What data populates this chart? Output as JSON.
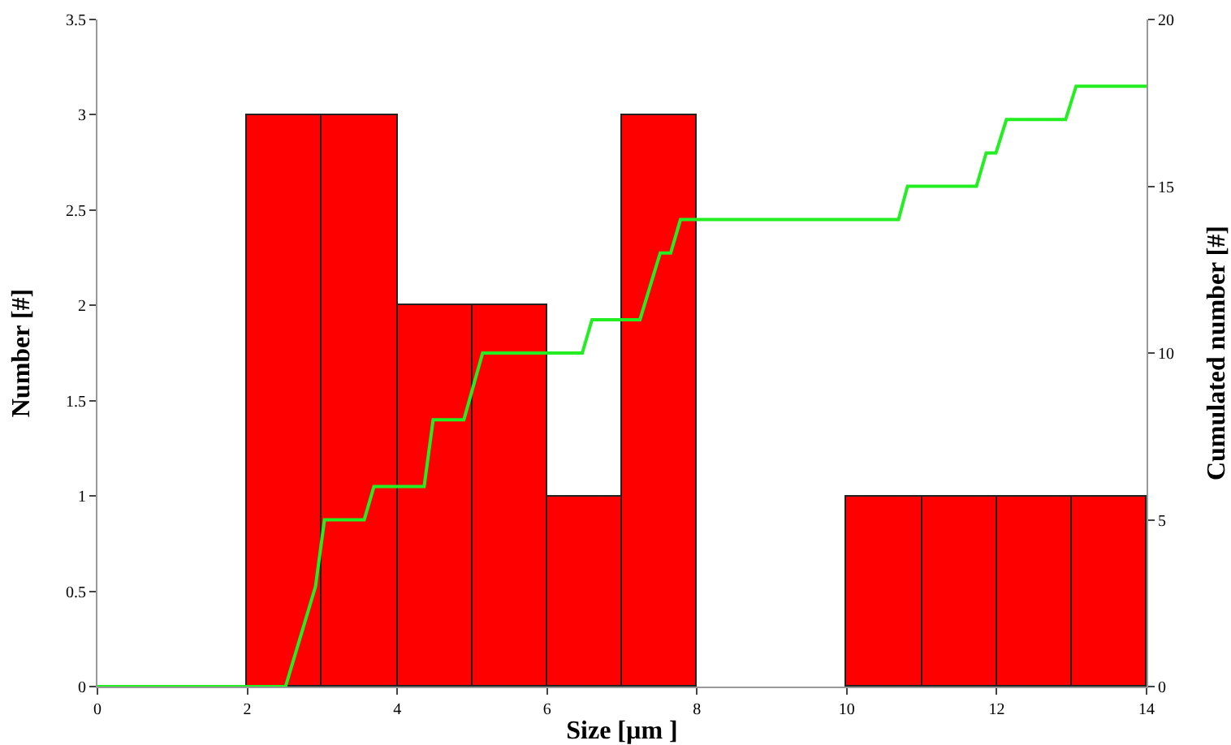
{
  "chart_data": {
    "type": "histogram",
    "xlabel": "Size [µm ]",
    "ylabel": "Number [#]",
    "y2label": "Cumulated number [#]",
    "bins": [
      2,
      3,
      4,
      5,
      6,
      7,
      8,
      9,
      10,
      11,
      12,
      13,
      14
    ],
    "values": [
      3,
      3,
      2,
      2,
      1,
      3,
      0,
      0,
      1,
      1,
      1,
      1
    ],
    "color": "#ff0000",
    "series": [
      {
        "type": "line",
        "axis": "y2",
        "color": "#22ee22",
        "x": [
          0,
          2.51,
          2.91,
          3.03,
          3.56,
          3.69,
          4.36,
          4.48,
          4.89,
          5.14,
          6.47,
          6.6,
          7.24,
          7.51,
          7.65,
          7.78,
          10.69,
          10.81,
          11.73,
          11.86,
          11.99,
          12.13,
          12.92,
          13.06,
          14
        ],
        "values": [
          0,
          0,
          3,
          5,
          5,
          6,
          6,
          8,
          8,
          10,
          10,
          11,
          11,
          13,
          13,
          14,
          14,
          15,
          15,
          16,
          16,
          17,
          17,
          18,
          18
        ]
      }
    ],
    "xlim": [
      0,
      14
    ],
    "xticks": [
      0,
      2,
      4,
      6,
      8,
      10,
      12,
      14
    ],
    "ylim": [
      0,
      3.5
    ],
    "yticks": [
      0,
      0.5,
      1,
      1.5,
      2,
      2.5,
      3,
      3.5
    ],
    "y2lim": [
      0,
      20
    ],
    "y2ticks": [
      0,
      5,
      10,
      15,
      20
    ],
    "grid": false
  }
}
